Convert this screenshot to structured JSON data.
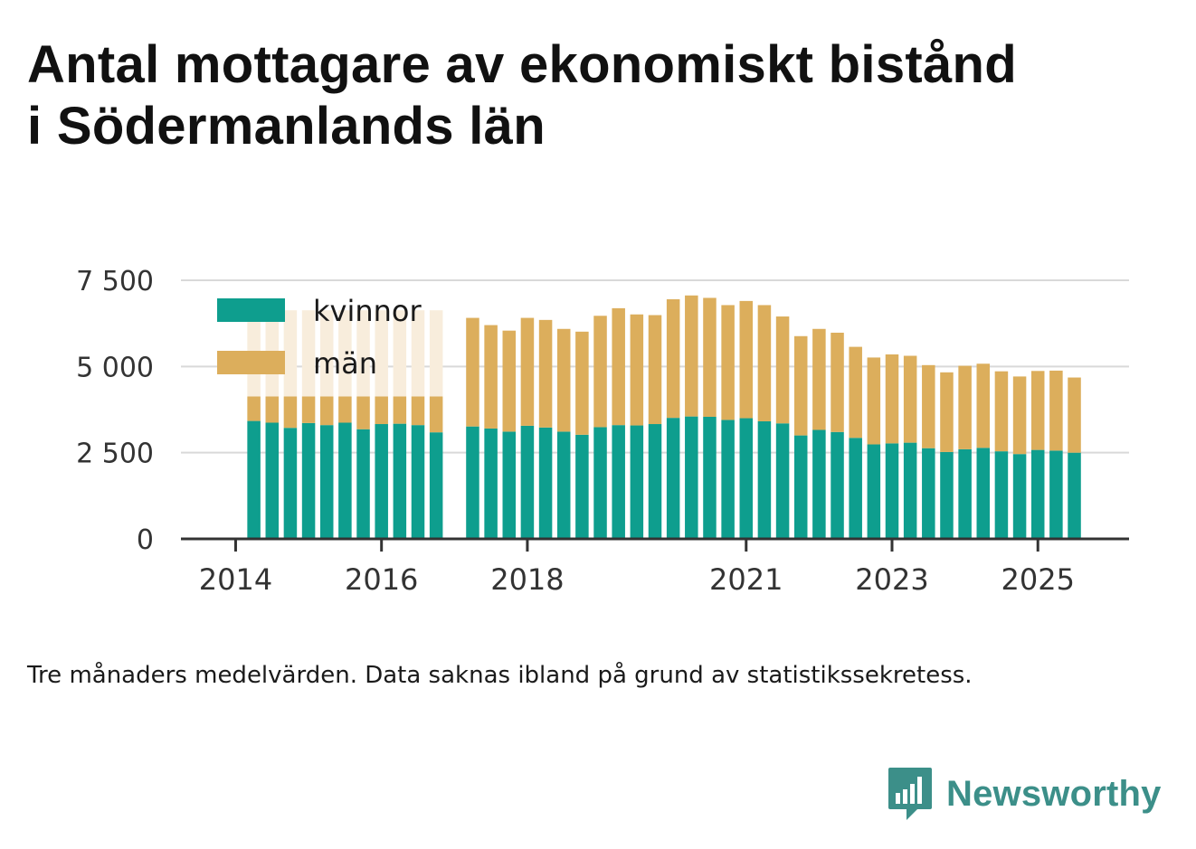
{
  "title_line1": "Antal mottagare av ekonomiskt bistånd",
  "title_line2": "i Södermanlands län",
  "note": "Tre månaders medelvärden. Data saknas ibland på grund av statistikssekretess.",
  "brand": "Newsworthy",
  "colors": {
    "kvinnor": "#0e9e8e",
    "man": "#dcae5c",
    "man_faded": "#f8eddc",
    "brand": "#3c8f89",
    "grid": "#d9d9d9",
    "axis": "#333333"
  },
  "chart_data": {
    "type": "bar",
    "stacked": true,
    "title": "Antal mottagare av ekonomiskt bistånd i Södermanlands län",
    "xlabel": "",
    "ylabel": "",
    "ylim": [
      0,
      7500
    ],
    "y_ticks": [
      0,
      2500,
      5000,
      7500
    ],
    "y_tick_labels": [
      "0",
      "2 500",
      "5 000",
      "7 500"
    ],
    "x_tick_labels": [
      "2014",
      "2016",
      "2018",
      "2021",
      "2023",
      "2025"
    ],
    "x_tick_positions": [
      2014.0,
      2016.0,
      2018.0,
      2021.0,
      2023.0,
      2025.0
    ],
    "x_range": [
      2013.25,
      2026.25
    ],
    "grid": true,
    "legend_position": "top-left",
    "legend": [
      "kvinnor",
      "män"
    ],
    "notes": "Bars in 2014.25–2016.75 show män values with missing data (faded).",
    "x": [
      2014.25,
      2014.5,
      2014.75,
      2015.0,
      2015.25,
      2015.5,
      2015.75,
      2016.0,
      2016.25,
      2016.5,
      2016.75,
      2017.25,
      2017.5,
      2017.75,
      2018.0,
      2018.25,
      2018.5,
      2018.75,
      2019.0,
      2019.25,
      2019.5,
      2019.75,
      2020.0,
      2020.25,
      2020.5,
      2020.75,
      2021.0,
      2021.25,
      2021.5,
      2021.75,
      2022.0,
      2022.25,
      2022.5,
      2022.75,
      2023.0,
      2023.25,
      2023.5,
      2023.75,
      2024.0,
      2024.25,
      2024.5,
      2024.75,
      2025.0,
      2025.25,
      2025.5
    ],
    "series": [
      {
        "name": "kvinnor",
        "values": [
          3420,
          3370,
          3220,
          3360,
          3300,
          3370,
          3180,
          3330,
          3340,
          3300,
          3090,
          3260,
          3200,
          3110,
          3280,
          3230,
          3110,
          3020,
          3240,
          3300,
          3290,
          3330,
          3510,
          3550,
          3540,
          3450,
          3500,
          3410,
          3350,
          3000,
          3160,
          3100,
          2930,
          2740,
          2770,
          2790,
          2630,
          2520,
          2600,
          2640,
          2540,
          2460,
          2580,
          2560,
          2500
        ]
      },
      {
        "name": "män",
        "values": [
          710,
          760,
          910,
          770,
          830,
          760,
          950,
          800,
          790,
          830,
          1040,
          3150,
          3000,
          2930,
          3130,
          3120,
          2980,
          2990,
          3230,
          3390,
          3220,
          3160,
          3440,
          3510,
          3450,
          3330,
          3400,
          3370,
          3100,
          2880,
          2930,
          2880,
          2640,
          2520,
          2580,
          2520,
          2410,
          2310,
          2420,
          2440,
          2320,
          2250,
          2290,
          2320,
          2180
        ]
      }
    ]
  }
}
